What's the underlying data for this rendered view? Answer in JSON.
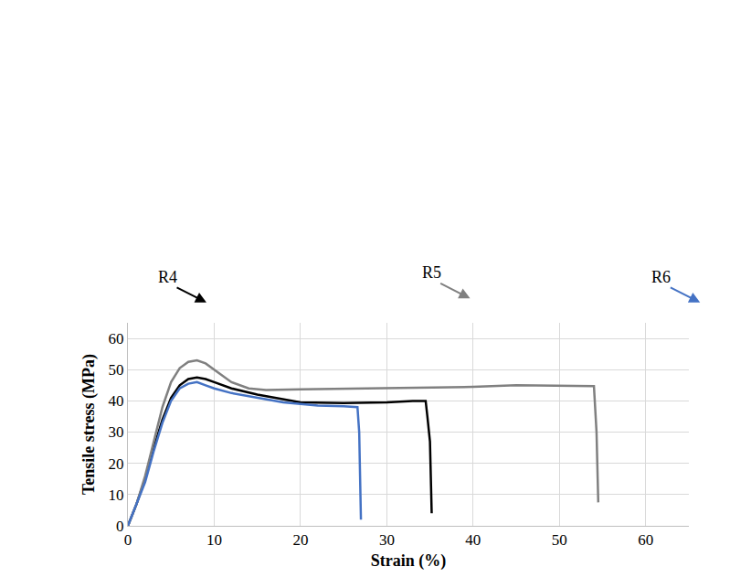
{
  "chart_data": {
    "type": "line",
    "x_label": "Strain (%)",
    "y_label": "Tensile stress (MPa)",
    "xlim": [
      0,
      65
    ],
    "xticks": [
      0,
      10,
      20,
      30,
      40,
      50,
      60
    ],
    "ylim": [
      0,
      65
    ],
    "yticks": [
      0,
      10,
      20,
      30,
      40,
      50,
      60
    ],
    "grid": true,
    "series": [
      {
        "name": "R4",
        "color": "#000000",
        "x": [
          0,
          1,
          2,
          3,
          4,
          5,
          6,
          7,
          8,
          9,
          10,
          12,
          15,
          18,
          20,
          25,
          30,
          33,
          34.5,
          34.7,
          35,
          35.2
        ],
        "values": [
          0,
          7,
          15,
          25,
          34,
          41,
          45,
          47,
          47.5,
          47,
          46,
          44,
          42,
          40.5,
          39.5,
          39.3,
          39.5,
          40,
          40,
          35,
          27,
          4
        ]
      },
      {
        "name": "R5",
        "color": "#808080",
        "x": [
          0,
          1,
          2,
          3,
          4,
          5,
          6,
          7,
          8,
          9,
          10,
          12,
          14,
          16,
          20,
          30,
          40,
          45,
          50,
          54,
          54.3,
          54.5
        ],
        "values": [
          0,
          7,
          16,
          27,
          38,
          46,
          50.5,
          52.5,
          53,
          52,
          50,
          46,
          44,
          43.5,
          43.7,
          44,
          44.5,
          45,
          44.8,
          44.7,
          30,
          7.5
        ]
      },
      {
        "name": "R6",
        "color": "#4472c4",
        "x": [
          0,
          1,
          2,
          3,
          4,
          5,
          6,
          7,
          8,
          9,
          10,
          12,
          15,
          18,
          20,
          22,
          25,
          26.6,
          26.8,
          27
        ],
        "values": [
          0,
          7,
          14,
          24,
          33,
          40,
          44,
          45.5,
          46,
          45,
          44,
          42.5,
          41,
          39.5,
          39,
          38.5,
          38.3,
          38,
          30,
          2
        ]
      }
    ]
  }
}
